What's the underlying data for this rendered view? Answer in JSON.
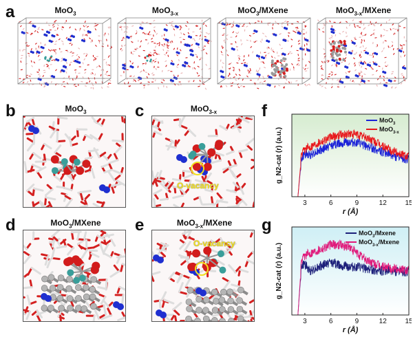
{
  "panel_labels": {
    "a": "a",
    "b": "b",
    "c": "c",
    "d": "d",
    "e": "e",
    "f": "f",
    "g": "g"
  },
  "row_a": {
    "titles": [
      {
        "base": "MoO",
        "sub": "3",
        "rest": ""
      },
      {
        "base": "MoO",
        "sub": "3-x",
        "rest": ""
      },
      {
        "base": "MoO",
        "sub": "3",
        "rest": "/MXene"
      },
      {
        "base": "MoO",
        "sub": "3-x",
        "rest": "/MXene"
      }
    ]
  },
  "snapshots": {
    "b": {
      "base": "MoO",
      "sub": "3",
      "rest": ""
    },
    "c": {
      "base": "MoO",
      "sub": "3-x",
      "rest": "",
      "annotation": "O-vacancy"
    },
    "d": {
      "base": "MoO",
      "sub": "3",
      "rest": "/MXene"
    },
    "e": {
      "base": "MoO",
      "sub": "3-x",
      "rest": "/MXene",
      "annotation": "O-vacancy"
    }
  },
  "colors": {
    "water_o": "#d42020",
    "water_h": "#dddddd",
    "n2": "#1f2fd0",
    "mo": "#3a9e9a",
    "mxene": "#9a9a9a",
    "vacancy": "#f0e020"
  },
  "chart_data": [
    {
      "type": "line",
      "panel": "f",
      "ylabel": "g_N2-cat (r) (a.u.)",
      "xlabel": "r (Å)",
      "xlim": [
        1.5,
        15
      ],
      "xticks": [
        3,
        6,
        9,
        12,
        15
      ],
      "background": "green-gradient",
      "legend_position": "top-right",
      "series": [
        {
          "name": "MoO3",
          "label_base": "MoO",
          "label_sub": "3",
          "color": "#1a22d8",
          "x": [
            2.2,
            2.6,
            3.0,
            3.5,
            4.0,
            5.0,
            6.0,
            7.0,
            8.0,
            9.0,
            10.0,
            11.0,
            12.0,
            13.0,
            14.0,
            15.0
          ],
          "y": [
            0.0,
            0.45,
            0.52,
            0.5,
            0.53,
            0.57,
            0.62,
            0.65,
            0.66,
            0.65,
            0.62,
            0.58,
            0.54,
            0.5,
            0.47,
            0.45
          ]
        },
        {
          "name": "MoO3-x",
          "label_base": "MoO",
          "label_sub": "3-x",
          "color": "#e8161a",
          "x": [
            2.2,
            2.6,
            3.0,
            3.5,
            4.0,
            5.0,
            6.0,
            7.0,
            8.0,
            9.0,
            10.0,
            11.0,
            12.0,
            13.0,
            14.0,
            15.0
          ],
          "y": [
            0.0,
            0.5,
            0.58,
            0.6,
            0.63,
            0.68,
            0.72,
            0.75,
            0.76,
            0.75,
            0.72,
            0.67,
            0.61,
            0.56,
            0.52,
            0.49
          ]
        }
      ]
    },
    {
      "type": "line",
      "panel": "g",
      "ylabel": "g_N2-cat (r) (a.u.)",
      "xlabel": "r (Å)",
      "xlim": [
        1.5,
        15
      ],
      "xticks": [
        3,
        6,
        9,
        12,
        15
      ],
      "background": "blue-gradient",
      "legend_position": "top-right",
      "series": [
        {
          "name": "MoO3/Mxene",
          "label_base": "MoO",
          "label_sub": "3",
          "label_rest": "/Mxene",
          "color": "#1c1f7a",
          "x": [
            2.2,
            2.6,
            3.0,
            3.5,
            4.0,
            5.0,
            6.0,
            7.0,
            8.0,
            9.0,
            10.0,
            11.0,
            12.0,
            13.0,
            14.0,
            15.0
          ],
          "y": [
            0.0,
            0.55,
            0.58,
            0.5,
            0.52,
            0.56,
            0.6,
            0.57,
            0.55,
            0.54,
            0.53,
            0.51,
            0.5,
            0.5,
            0.49,
            0.49
          ]
        },
        {
          "name": "MoO3-x/Mxene",
          "label_base": "MoO",
          "label_sub": "3-x",
          "label_rest": "/Mxene",
          "color": "#e0197a",
          "x": [
            2.2,
            2.6,
            3.0,
            3.5,
            4.0,
            5.0,
            6.0,
            7.0,
            8.0,
            9.0,
            10.0,
            11.0,
            12.0,
            13.0,
            14.0,
            15.0
          ],
          "y": [
            0.0,
            0.6,
            0.68,
            0.7,
            0.72,
            0.76,
            0.8,
            0.8,
            0.78,
            0.7,
            0.63,
            0.58,
            0.55,
            0.53,
            0.52,
            0.51
          ]
        }
      ]
    }
  ]
}
